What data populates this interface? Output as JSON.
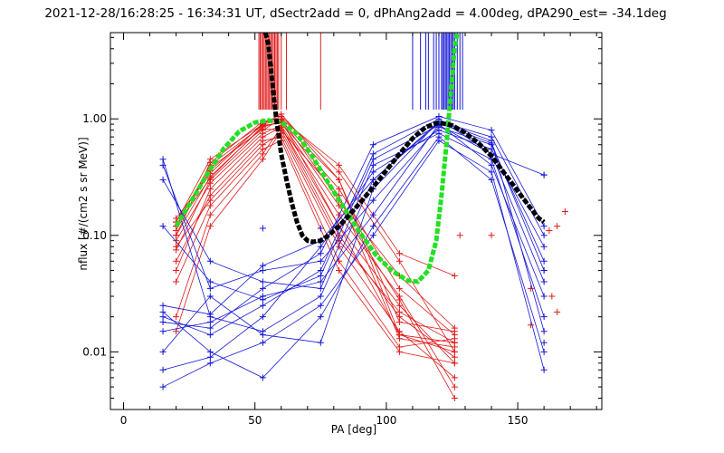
{
  "chart_data": {
    "type": "scatter",
    "title": "2021-12-28/16:28:25 - 16:34:31 UT, dSectr2add = 0, dPhAng2add = 4.00deg, dPA290_est= -34.1deg",
    "xlabel": "PA [deg]",
    "ylabel": "nflux [#/(cm2 s sr MeV)]",
    "xlim": [
      -5,
      182
    ],
    "ylim": [
      0.0032,
      5.5
    ],
    "yscale": "log",
    "x_ticks": [
      0,
      50,
      100,
      150
    ],
    "x_tick_labels": [
      "0",
      "50",
      "100",
      "150"
    ],
    "y_ticks": [
      0.01,
      0.1,
      1.0
    ],
    "y_tick_labels": [
      "0.01",
      "0.10",
      "1.00"
    ],
    "grid": false,
    "legend": "none",
    "colors": {
      "red": "#e11b1b",
      "blue": "#1416d6",
      "green": "#22e022",
      "black": "#000000"
    },
    "series": [
      {
        "color": "red",
        "style": "lines+plus",
        "x": [
          20,
          33,
          53,
          60,
          82,
          105,
          126
        ],
        "y_profiles": [
          [
            0.1,
            0.32,
            0.85,
            0.95,
            0.3,
            0.014,
            0.012
          ],
          [
            0.075,
            0.3,
            0.8,
            1.0,
            0.2,
            0.045,
            0.016
          ],
          [
            0.13,
            0.45,
            0.9,
            0.98,
            0.12,
            0.025,
            0.008
          ],
          [
            0.08,
            0.2,
            0.6,
            0.75,
            0.08,
            0.015,
            0.006
          ],
          [
            0.12,
            0.4,
            0.88,
            0.92,
            0.25,
            0.035,
            0.014
          ],
          [
            0.05,
            0.25,
            0.7,
            0.85,
            0.1,
            0.02,
            0.009
          ],
          [
            0.14,
            0.34,
            0.92,
            1.05,
            0.35,
            0.06,
            0.01
          ],
          [
            0.09,
            0.28,
            0.75,
            0.88,
            0.15,
            0.03,
            0.005
          ],
          [
            0.11,
            0.38,
            0.82,
            0.8,
            0.22,
            0.013,
            0.011
          ],
          [
            0.06,
            0.22,
            0.65,
            0.7,
            0.06,
            0.011,
            0.013
          ],
          [
            0.1,
            0.42,
            0.95,
            1.0,
            0.4,
            0.07,
            0.045
          ],
          [
            0.12,
            0.31,
            0.87,
            0.93,
            0.18,
            0.028,
            0.004
          ],
          [
            0.04,
            0.18,
            0.55,
            0.65,
            0.05,
            0.01,
            0.008
          ],
          [
            0.13,
            0.36,
            0.9,
            1.1,
            0.3,
            0.018,
            0.015
          ],
          [
            0.02,
            0.15,
            0.5,
            0.85,
            0.12,
            0.014,
            0.01
          ],
          [
            0.015,
            0.12,
            0.45,
            0.8,
            0.09,
            0.022,
            0.012
          ]
        ],
        "extra_points": [
          [
            155,
            0.035
          ],
          [
            162,
            0.11
          ],
          [
            165,
            0.12
          ],
          [
            160,
            0.05
          ],
          [
            155,
            0.017
          ],
          [
            163,
            0.03
          ],
          [
            168,
            0.16
          ],
          [
            140,
            0.1
          ],
          [
            128,
            0.1
          ],
          [
            165,
            0.022
          ]
        ]
      },
      {
        "color": "blue",
        "style": "lines+plus",
        "x": [
          15,
          33,
          53,
          75,
          95,
          120,
          140,
          160
        ],
        "y_profiles": [
          [
            0.45,
            0.02,
            0.015,
            0.03,
            0.3,
            0.95,
            0.7,
            0.1
          ],
          [
            0.4,
            0.035,
            0.05,
            0.06,
            0.2,
            0.85,
            0.6,
            0.06
          ],
          [
            0.02,
            0.014,
            0.025,
            0.05,
            0.5,
            1.0,
            0.5,
            0.04
          ],
          [
            0.015,
            0.018,
            0.03,
            0.04,
            0.15,
            0.9,
            0.4,
            0.03
          ],
          [
            0.007,
            0.009,
            0.02,
            0.08,
            0.35,
            0.8,
            0.55,
            0.08
          ],
          [
            0.3,
            0.06,
            0.04,
            0.035,
            0.4,
            0.75,
            0.45,
            0.02
          ],
          [
            0.01,
            0.03,
            0.014,
            0.012,
            0.25,
            0.95,
            0.65,
            0.015
          ],
          [
            0.022,
            0.01,
            0.006,
            0.02,
            0.12,
            0.7,
            0.3,
            0.01
          ],
          [
            0.018,
            0.016,
            0.035,
            0.07,
            0.6,
            1.05,
            0.8,
            0.12
          ],
          [
            0.005,
            0.008,
            0.012,
            0.025,
            0.1,
            0.65,
            0.35,
            0.007
          ],
          [
            0.12,
            0.04,
            0.028,
            0.045,
            0.45,
            0.88,
            0.5,
            0.33
          ],
          [
            0.025,
            0.021,
            0.055,
            0.09,
            0.3,
            0.92,
            0.62,
            0.05
          ]
        ],
        "extra_points": [
          [
            53,
            0.115
          ],
          [
            75,
            0.115
          ],
          [
            160,
            0.33
          ],
          [
            160,
            0.012
          ]
        ]
      },
      {
        "color": "green",
        "style": "thick-dashed",
        "x": [
          20,
          26,
          32,
          38,
          44,
          50,
          55,
          60,
          66,
          72,
          78,
          84,
          90,
          96,
          102,
          108,
          112,
          116,
          119,
          121,
          123,
          125,
          126,
          127
        ],
        "y": [
          0.12,
          0.2,
          0.34,
          0.55,
          0.78,
          0.93,
          0.97,
          0.94,
          0.74,
          0.47,
          0.28,
          0.17,
          0.105,
          0.068,
          0.05,
          0.041,
          0.04,
          0.05,
          0.09,
          0.22,
          0.65,
          2.2,
          4.2,
          5.5
        ]
      },
      {
        "color": "black",
        "style": "thick-dashed",
        "x": [
          54,
          55,
          56,
          57,
          58,
          60,
          62,
          64,
          66,
          68,
          70,
          72,
          75,
          78,
          82,
          86,
          90,
          95,
          100,
          105,
          110,
          115,
          120,
          125,
          130,
          135,
          140,
          145,
          150,
          155,
          158,
          160
        ],
        "y": [
          5.5,
          4.5,
          2.8,
          1.7,
          1.05,
          0.5,
          0.3,
          0.19,
          0.13,
          0.1,
          0.09,
          0.088,
          0.09,
          0.1,
          0.12,
          0.15,
          0.19,
          0.26,
          0.36,
          0.5,
          0.68,
          0.85,
          0.93,
          0.88,
          0.76,
          0.62,
          0.48,
          0.34,
          0.24,
          0.17,
          0.14,
          0.13
        ]
      }
    ],
    "markers": {
      "red_x": [
        51.5,
        52,
        52.5,
        53,
        53.5,
        54,
        54.5,
        55,
        55.5,
        56,
        56.5,
        57,
        57.5,
        58,
        58.5,
        59,
        60,
        62,
        75
      ],
      "red_bottom": [
        1.2,
        1.2,
        1.2,
        1.2,
        1.2,
        1.2,
        1.2,
        1.2,
        1.2,
        1.2,
        1.2,
        1.2,
        1.2,
        1.2,
        1.2,
        1.2,
        1.2,
        1.2,
        1.2
      ],
      "blue_x": [
        110,
        113,
        115,
        116,
        118,
        119,
        120,
        121,
        121.5,
        122,
        122.5,
        123,
        123.5,
        124,
        124.5,
        125,
        125.5,
        126,
        127,
        128,
        129
      ],
      "blue_bottom": [
        1.2,
        1.2,
        1.2,
        1.2,
        1.2,
        1.2,
        1.2,
        1.2,
        1.2,
        1.2,
        1.2,
        1.2,
        1.2,
        1.2,
        1.2,
        1.2,
        1.2,
        1.2,
        1.2,
        1.2,
        1.2
      ]
    }
  }
}
